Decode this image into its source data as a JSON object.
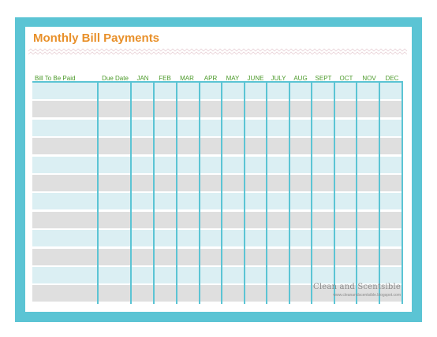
{
  "title": "Monthly Bill Payments",
  "columns": [
    "Bill To Be Paid",
    "Due Date",
    "JAN",
    "FEB",
    "MAR",
    "APR",
    "MAY",
    "JUNE",
    "JULY",
    "AUG",
    "SEPT",
    "OCT",
    "NOV",
    "DEC"
  ],
  "row_count": 12,
  "branding": {
    "name": "Clean and Scentsible",
    "url": "www.cleanandscentsible.blogspot.com"
  },
  "colors": {
    "frame": "#5bc4d4",
    "title": "#e8902a",
    "header_text": "#4b9a2a",
    "row_blue": "#dbeff3",
    "row_gray": "#dfdfdf"
  }
}
